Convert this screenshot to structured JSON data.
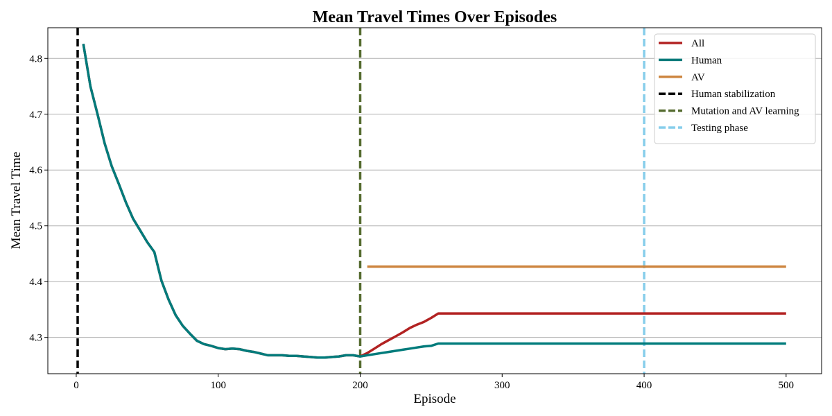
{
  "chart_data": {
    "type": "line",
    "title": "Mean Travel Times Over Episodes",
    "xlabel": "Episode",
    "ylabel": "Mean Travel Time",
    "xlim": [
      -20,
      525
    ],
    "ylim": [
      4.235,
      4.855
    ],
    "xticks": [
      0,
      100,
      200,
      300,
      400,
      500
    ],
    "yticks": [
      4.3,
      4.4,
      4.5,
      4.6,
      4.7,
      4.8
    ],
    "xtick_labels": [
      "0",
      "100",
      "200",
      "300",
      "400",
      "500"
    ],
    "ytick_labels": [
      "4.3",
      "4.4",
      "4.5",
      "4.6",
      "4.7",
      "4.8"
    ],
    "grid": "horizontal",
    "legend_position": "top-right",
    "series": [
      {
        "name": "All",
        "color": "#b22222",
        "x": [
          5,
          10,
          15,
          20,
          25,
          30,
          35,
          40,
          45,
          50,
          55,
          60,
          65,
          70,
          75,
          80,
          85,
          90,
          95,
          100,
          105,
          110,
          115,
          120,
          125,
          130,
          135,
          140,
          145,
          150,
          155,
          160,
          165,
          170,
          175,
          180,
          185,
          190,
          195,
          200,
          205,
          210,
          215,
          220,
          225,
          230,
          235,
          240,
          245,
          250,
          255,
          300,
          350,
          400,
          450,
          500
        ],
        "values": [
          4.826,
          4.75,
          4.7,
          4.648,
          4.607,
          4.575,
          4.542,
          4.513,
          4.492,
          4.471,
          4.453,
          4.402,
          4.368,
          4.34,
          4.321,
          4.307,
          4.294,
          4.288,
          4.285,
          4.281,
          4.279,
          4.28,
          4.279,
          4.276,
          4.274,
          4.271,
          4.268,
          4.268,
          4.268,
          4.267,
          4.267,
          4.266,
          4.265,
          4.264,
          4.264,
          4.265,
          4.266,
          4.268,
          4.268,
          4.266,
          4.272,
          4.28,
          4.288,
          4.295,
          4.302,
          4.309,
          4.317,
          4.323,
          4.328,
          4.335,
          4.343,
          4.343,
          4.343,
          4.343,
          4.343,
          4.343
        ]
      },
      {
        "name": "Human",
        "color": "#007b7b",
        "x": [
          5,
          10,
          15,
          20,
          25,
          30,
          35,
          40,
          45,
          50,
          55,
          60,
          65,
          70,
          75,
          80,
          85,
          90,
          95,
          100,
          105,
          110,
          115,
          120,
          125,
          130,
          135,
          140,
          145,
          150,
          155,
          160,
          165,
          170,
          175,
          180,
          185,
          190,
          195,
          200,
          205,
          210,
          215,
          220,
          225,
          230,
          235,
          240,
          245,
          250,
          255,
          300,
          350,
          400,
          450,
          500
        ],
        "values": [
          4.826,
          4.75,
          4.7,
          4.648,
          4.607,
          4.575,
          4.542,
          4.513,
          4.492,
          4.471,
          4.453,
          4.402,
          4.368,
          4.34,
          4.321,
          4.307,
          4.294,
          4.288,
          4.285,
          4.281,
          4.279,
          4.28,
          4.279,
          4.276,
          4.274,
          4.271,
          4.268,
          4.268,
          4.268,
          4.267,
          4.267,
          4.266,
          4.265,
          4.264,
          4.264,
          4.265,
          4.266,
          4.268,
          4.268,
          4.266,
          4.268,
          4.27,
          4.272,
          4.274,
          4.276,
          4.278,
          4.28,
          4.282,
          4.284,
          4.285,
          4.289,
          4.289,
          4.289,
          4.289,
          4.289,
          4.289
        ]
      },
      {
        "name": "AV",
        "color": "#cd853f",
        "x": [
          205,
          250,
          300,
          350,
          400,
          450,
          500
        ],
        "values": [
          4.427,
          4.427,
          4.427,
          4.427,
          4.427,
          4.427,
          4.427
        ]
      }
    ],
    "vlines": [
      {
        "name": "Human stabilization",
        "x": 1,
        "color": "#000000"
      },
      {
        "name": "Mutation and AV learning",
        "x": 200,
        "color": "#556b2f"
      },
      {
        "name": "Testing phase",
        "x": 400,
        "color": "#87ceeb"
      }
    ]
  }
}
